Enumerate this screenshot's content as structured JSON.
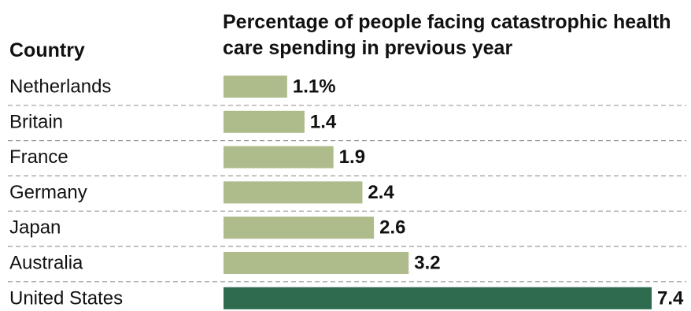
{
  "column_header": "Country",
  "colors": {
    "bar_default": "#aebb8b",
    "bar_highlight": "#2f6b4f",
    "divider": "#9a9a9a"
  },
  "chart_data": {
    "type": "bar",
    "orientation": "horizontal",
    "title": "Percentage of people facing catastrophic health care spending in previous year",
    "categories": [
      "Netherlands",
      "Britain",
      "France",
      "Germany",
      "Japan",
      "Australia",
      "United States"
    ],
    "values": [
      1.1,
      1.4,
      1.9,
      2.4,
      2.6,
      3.2,
      7.4
    ],
    "value_labels": [
      "1.1%",
      "1.4",
      "1.9",
      "2.4",
      "2.6",
      "3.2",
      "7.4"
    ],
    "highlight": "United States",
    "xlim": [
      0,
      7.4
    ],
    "grid": false
  }
}
